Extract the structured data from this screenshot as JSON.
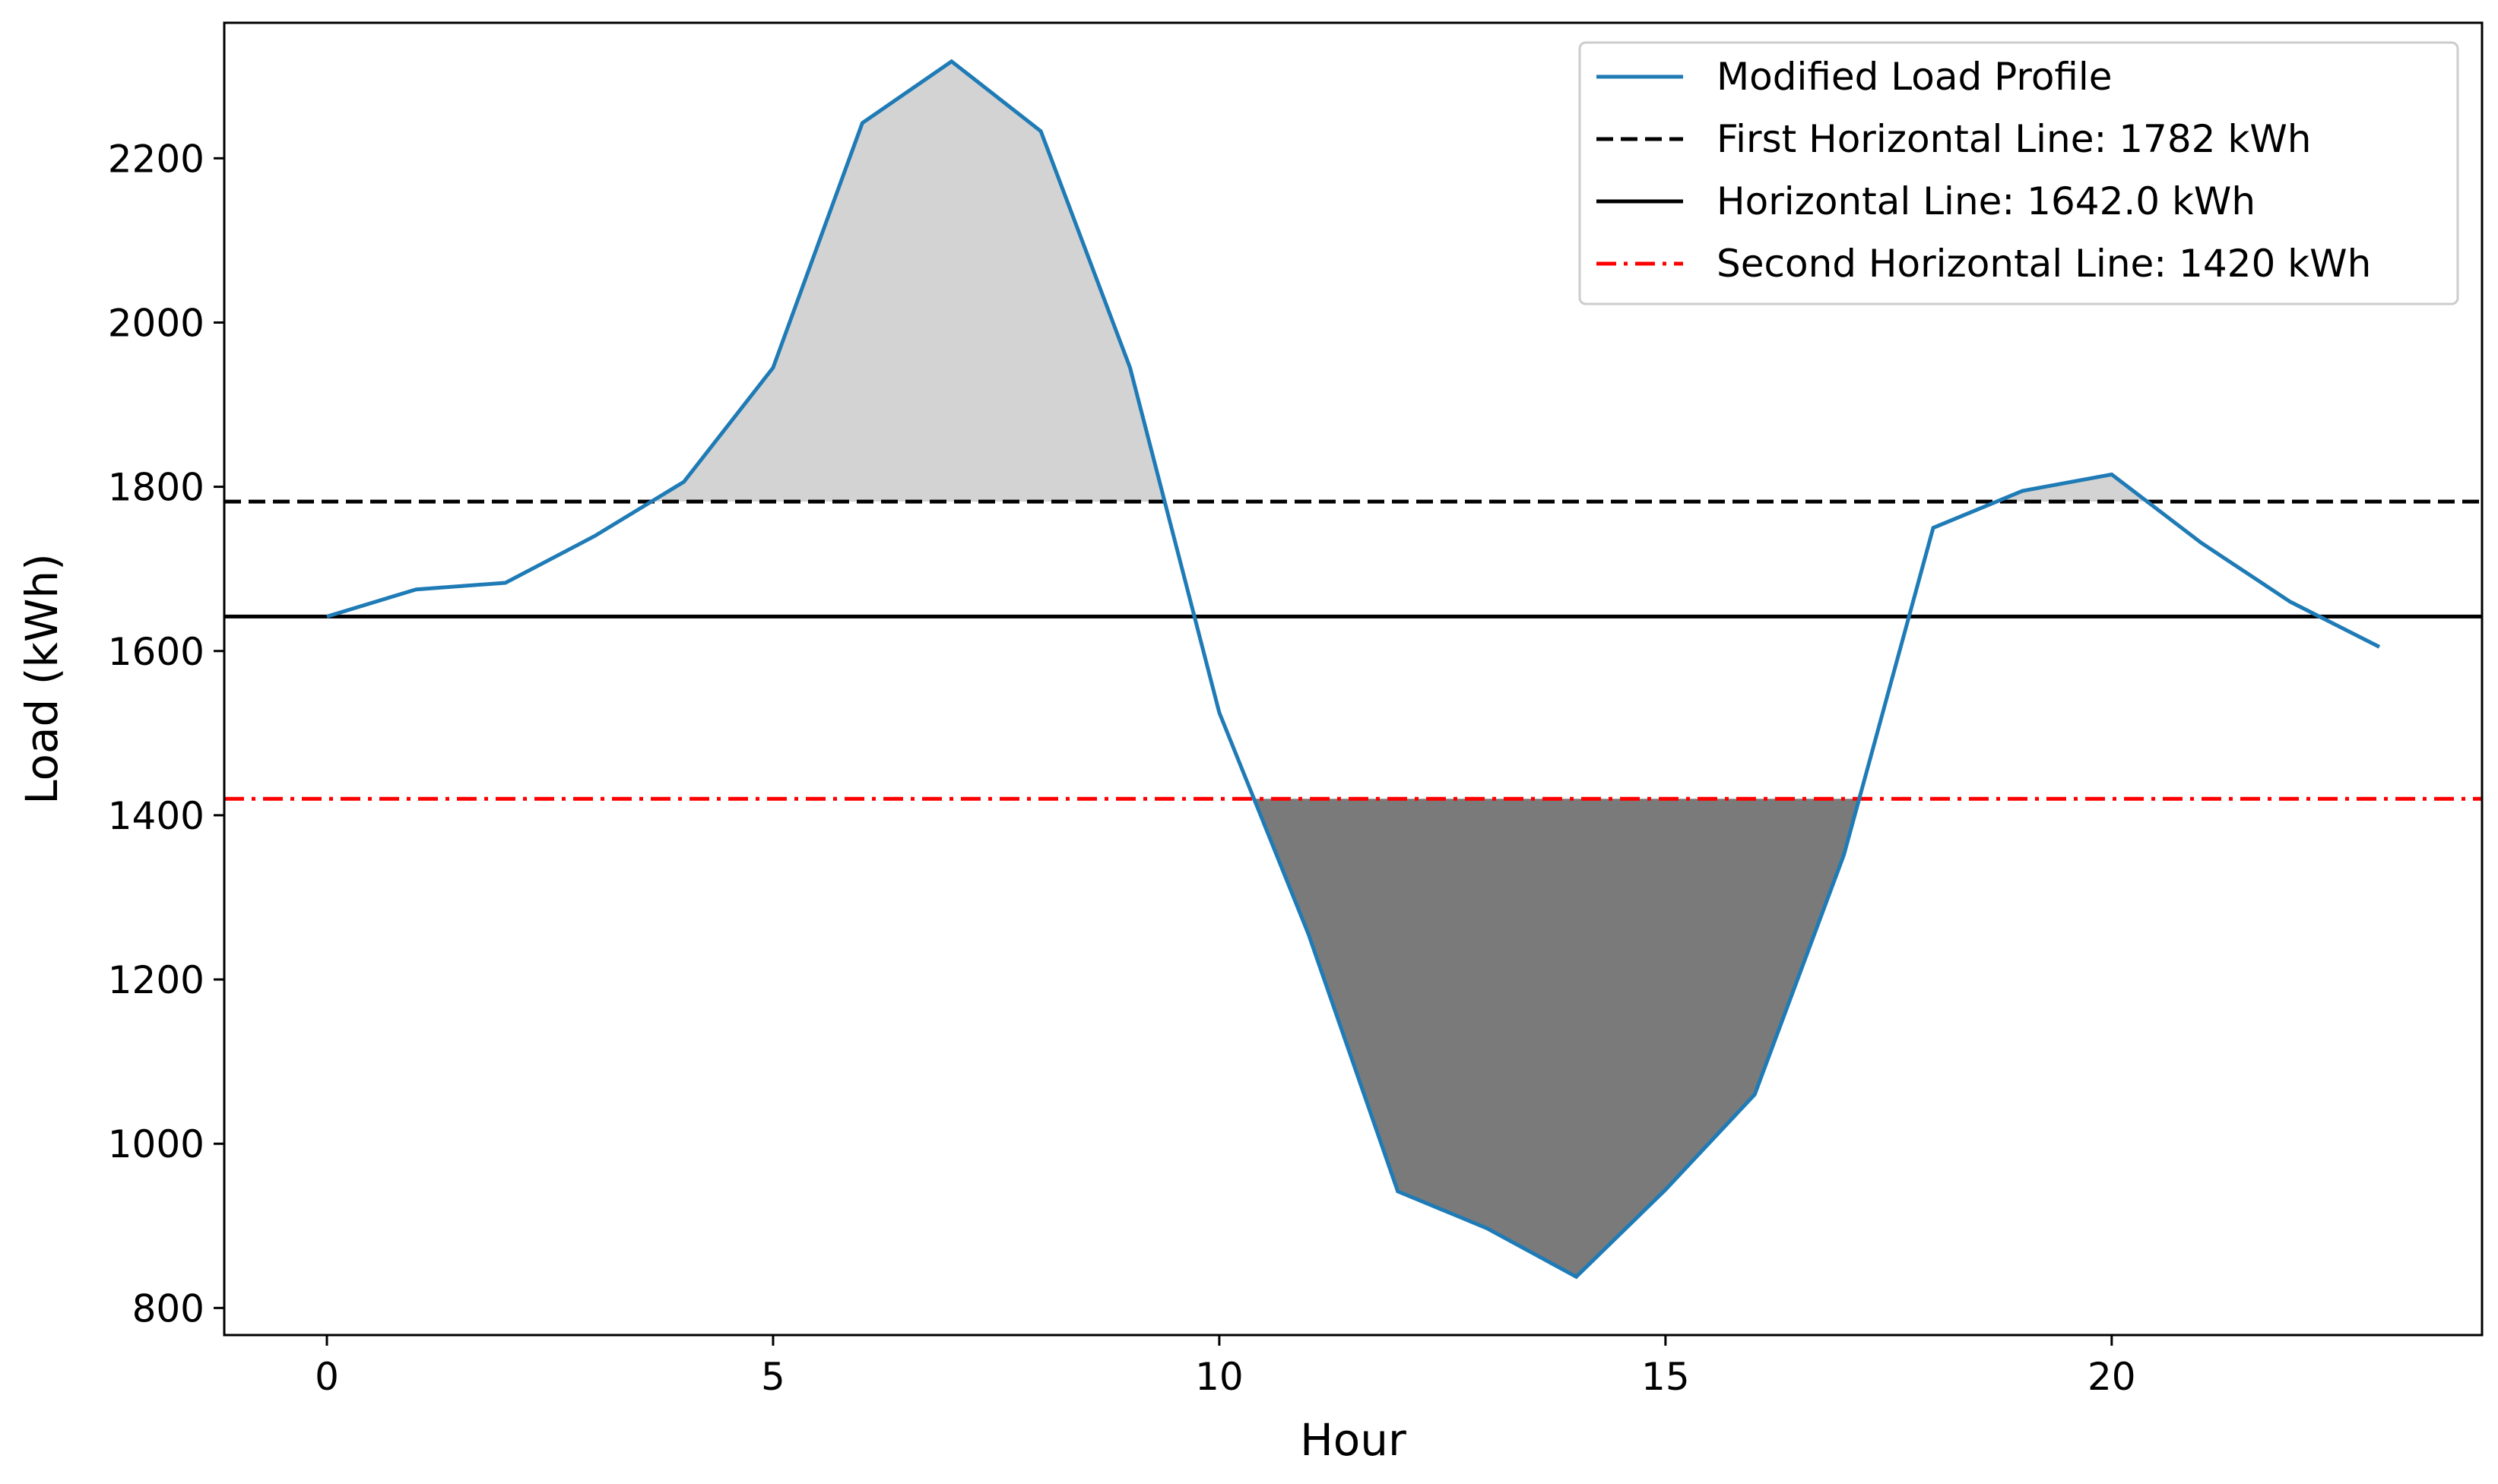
{
  "chart_data": {
    "type": "line",
    "title": "",
    "xlabel": "Hour",
    "ylabel": "Load (kWh)",
    "xlim": [
      -1.15,
      24.15
    ],
    "ylim": [
      767,
      2365
    ],
    "xticks": [
      0,
      5,
      10,
      15,
      20
    ],
    "yticks": [
      800,
      1000,
      1200,
      1400,
      1600,
      1800,
      2000,
      2200
    ],
    "grid": false,
    "legend_position": "top-right",
    "series": [
      {
        "name": "Modified Load Profile",
        "color": "#1f7bb6",
        "x": [
          0,
          1,
          2,
          3,
          4,
          5,
          6,
          7,
          8,
          9,
          10,
          11,
          12,
          13,
          14,
          15,
          16,
          17,
          18,
          19,
          20,
          21,
          22,
          23
        ],
        "y": [
          1642,
          1675,
          1683,
          1740,
          1806,
          1945,
          2243,
          2318,
          2233,
          1945,
          1525,
          1255,
          942,
          897,
          838,
          944,
          1060,
          1352,
          1750,
          1795,
          1815,
          1732,
          1660,
          1605
        ]
      }
    ],
    "reference_lines": [
      {
        "name": "First Horizontal Line: 1782 kWh",
        "y": 1782,
        "color": "#000000",
        "style": "dashed"
      },
      {
        "name": "Horizontal Line: 1642.0 kWh",
        "y": 1642,
        "color": "#000000",
        "style": "solid"
      },
      {
        "name": "Second Horizontal Line: 1420 kWh",
        "y": 1420,
        "color": "#ff0000",
        "style": "dashdot"
      }
    ],
    "fills": [
      {
        "between": "above",
        "threshold": 1782,
        "color": "#d3d3d3"
      },
      {
        "between": "below",
        "threshold": 1420,
        "color": "#7a7a7a"
      }
    ]
  }
}
